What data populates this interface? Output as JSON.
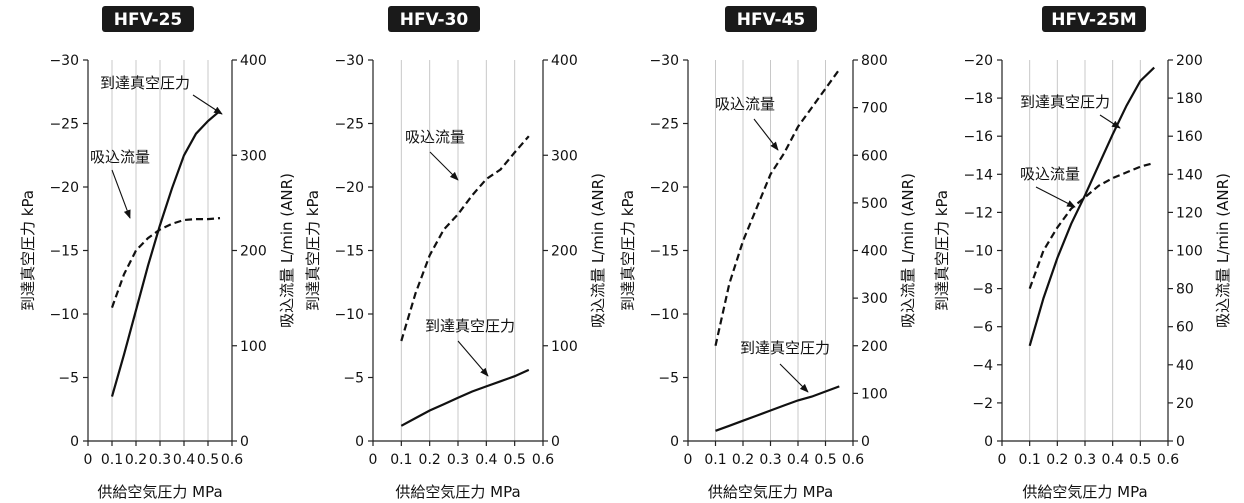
{
  "chart_data": [
    {
      "type": "line",
      "title": "HFV-25",
      "xlabel": "供給空気圧力  MPa",
      "ylabel_left": "到達真空圧力  kPa",
      "ylabel_right": "吸込流量  L/min (ANR)",
      "xlim": [
        0,
        0.6
      ],
      "x_ticks": [
        "0",
        "0.1",
        "0.2",
        "0.3",
        "0.4",
        "0.5",
        "0.6"
      ],
      "ylim_left": [
        0,
        -30
      ],
      "y_ticks_left": [
        "0",
        "−5",
        "−10",
        "−15",
        "−20",
        "−25",
        "−30"
      ],
      "ylim_right": [
        0,
        400
      ],
      "y_ticks_right": [
        "0",
        "100",
        "200",
        "300",
        "400"
      ],
      "grid": "vertical",
      "series": [
        {
          "name": "到達真空圧力",
          "axis": "left",
          "style": "solid",
          "x": [
            0.1,
            0.15,
            0.2,
            0.25,
            0.3,
            0.35,
            0.4,
            0.45,
            0.5,
            0.55
          ],
          "y": [
            -3.5,
            -6.8,
            -10.3,
            -13.8,
            -17.0,
            -19.9,
            -22.5,
            -24.2,
            -25.2,
            -26.0
          ]
        },
        {
          "name": "吸込流量",
          "axis": "right",
          "style": "dashed",
          "x": [
            0.1,
            0.15,
            0.2,
            0.25,
            0.3,
            0.35,
            0.4,
            0.45,
            0.5,
            0.55
          ],
          "y": [
            140,
            175,
            200,
            213,
            222,
            228,
            232,
            233,
            233,
            234
          ]
        }
      ],
      "annotations": [
        {
          "text": "到達真空圧力",
          "series": 0
        },
        {
          "text": "吸込流量",
          "series": 1
        }
      ]
    },
    {
      "type": "line",
      "title": "HFV-30",
      "xlabel": "供給空気圧力  MPa",
      "ylabel_left": "到達真空圧力  kPa",
      "ylabel_right": "吸込流量  L/min (ANR)",
      "xlim": [
        0,
        0.6
      ],
      "x_ticks": [
        "0",
        "0.1",
        "0.2",
        "0.3",
        "0.4",
        "0.5",
        "0.6"
      ],
      "ylim_left": [
        0,
        -30
      ],
      "y_ticks_left": [
        "0",
        "−5",
        "−10",
        "−15",
        "−20",
        "−25",
        "−30"
      ],
      "ylim_right": [
        0,
        400
      ],
      "y_ticks_right": [
        "0",
        "100",
        "200",
        "300",
        "400"
      ],
      "grid": "vertical",
      "series": [
        {
          "name": "到達真空圧力",
          "axis": "left",
          "style": "solid",
          "x": [
            0.1,
            0.15,
            0.2,
            0.25,
            0.3,
            0.35,
            0.4,
            0.45,
            0.5,
            0.55
          ],
          "y": [
            -1.2,
            -1.8,
            -2.4,
            -2.9,
            -3.4,
            -3.9,
            -4.3,
            -4.7,
            -5.1,
            -5.6
          ]
        },
        {
          "name": "吸込流量",
          "axis": "right",
          "style": "dashed",
          "x": [
            0.1,
            0.15,
            0.2,
            0.25,
            0.3,
            0.35,
            0.4,
            0.45,
            0.5,
            0.55
          ],
          "y": [
            105,
            155,
            195,
            222,
            238,
            258,
            275,
            285,
            303,
            320
          ]
        }
      ],
      "annotations": [
        {
          "text": "吸込流量",
          "series": 1
        },
        {
          "text": "到達真空圧力",
          "series": 0
        }
      ]
    },
    {
      "type": "line",
      "title": "HFV-45",
      "xlabel": "供給空気圧力  MPa",
      "ylabel_left": "到達真空圧力  kPa",
      "ylabel_right": "吸込流量  L/min (ANR)",
      "xlim": [
        0,
        0.6
      ],
      "x_ticks": [
        "0",
        "0.1",
        "0.2",
        "0.3",
        "0.4",
        "0.5",
        "0.6"
      ],
      "ylim_left": [
        0,
        -30
      ],
      "y_ticks_left": [
        "0",
        "−5",
        "−10",
        "−15",
        "−20",
        "−25",
        "−30"
      ],
      "ylim_right": [
        0,
        800
      ],
      "y_ticks_right": [
        "0",
        "100",
        "200",
        "300",
        "400",
        "500",
        "600",
        "700",
        "800"
      ],
      "grid": "vertical",
      "series": [
        {
          "name": "到達真空圧力",
          "axis": "left",
          "style": "solid",
          "x": [
            0.1,
            0.15,
            0.2,
            0.25,
            0.3,
            0.35,
            0.4,
            0.45,
            0.5,
            0.55
          ],
          "y": [
            -0.8,
            -1.2,
            -1.6,
            -2.0,
            -2.4,
            -2.8,
            -3.2,
            -3.5,
            -3.9,
            -4.3
          ]
        },
        {
          "name": "吸込流量",
          "axis": "right",
          "style": "dashed",
          "x": [
            0.1,
            0.15,
            0.2,
            0.25,
            0.3,
            0.35,
            0.4,
            0.45,
            0.5,
            0.55
          ],
          "y": [
            200,
            330,
            420,
            490,
            560,
            605,
            660,
            700,
            740,
            780
          ]
        }
      ],
      "annotations": [
        {
          "text": "吸込流量",
          "series": 1
        },
        {
          "text": "到達真空圧力",
          "series": 0
        }
      ]
    },
    {
      "type": "line",
      "title": "HFV-25M",
      "xlabel": "供給空気圧力  MPa",
      "ylabel_left": "到達真空圧力  kPa",
      "ylabel_right": "吸込流量  L/min (ANR)",
      "xlim": [
        0,
        0.6
      ],
      "x_ticks": [
        "0",
        "0.1",
        "0.2",
        "0.3",
        "0.4",
        "0.5",
        "0.6"
      ],
      "ylim_left": [
        0,
        -20
      ],
      "y_ticks_left": [
        "0",
        "−2",
        "−4",
        "−6",
        "−8",
        "−10",
        "−12",
        "−14",
        "−16",
        "−18",
        "−20"
      ],
      "ylim_right": [
        0,
        200
      ],
      "y_ticks_right": [
        "0",
        "20",
        "40",
        "60",
        "80",
        "100",
        "120",
        "140",
        "160",
        "180",
        "200"
      ],
      "grid": "vertical",
      "series": [
        {
          "name": "到達真空圧力",
          "axis": "left",
          "style": "solid",
          "x": [
            0.1,
            0.15,
            0.2,
            0.25,
            0.3,
            0.35,
            0.4,
            0.45,
            0.5,
            0.55
          ],
          "y": [
            -5.0,
            -7.5,
            -9.6,
            -11.4,
            -12.9,
            -14.5,
            -16.1,
            -17.6,
            -18.9,
            -19.6
          ]
        },
        {
          "name": "吸込流量",
          "axis": "right",
          "style": "dashed",
          "x": [
            0.1,
            0.15,
            0.2,
            0.25,
            0.3,
            0.35,
            0.4,
            0.45,
            0.5,
            0.55
          ],
          "y": [
            80,
            100,
            112,
            122,
            128,
            134,
            138,
            141,
            144,
            146
          ]
        }
      ],
      "annotations": [
        {
          "text": "到達真空圧力",
          "series": 0
        },
        {
          "text": "吸込流量",
          "series": 1
        }
      ]
    }
  ]
}
